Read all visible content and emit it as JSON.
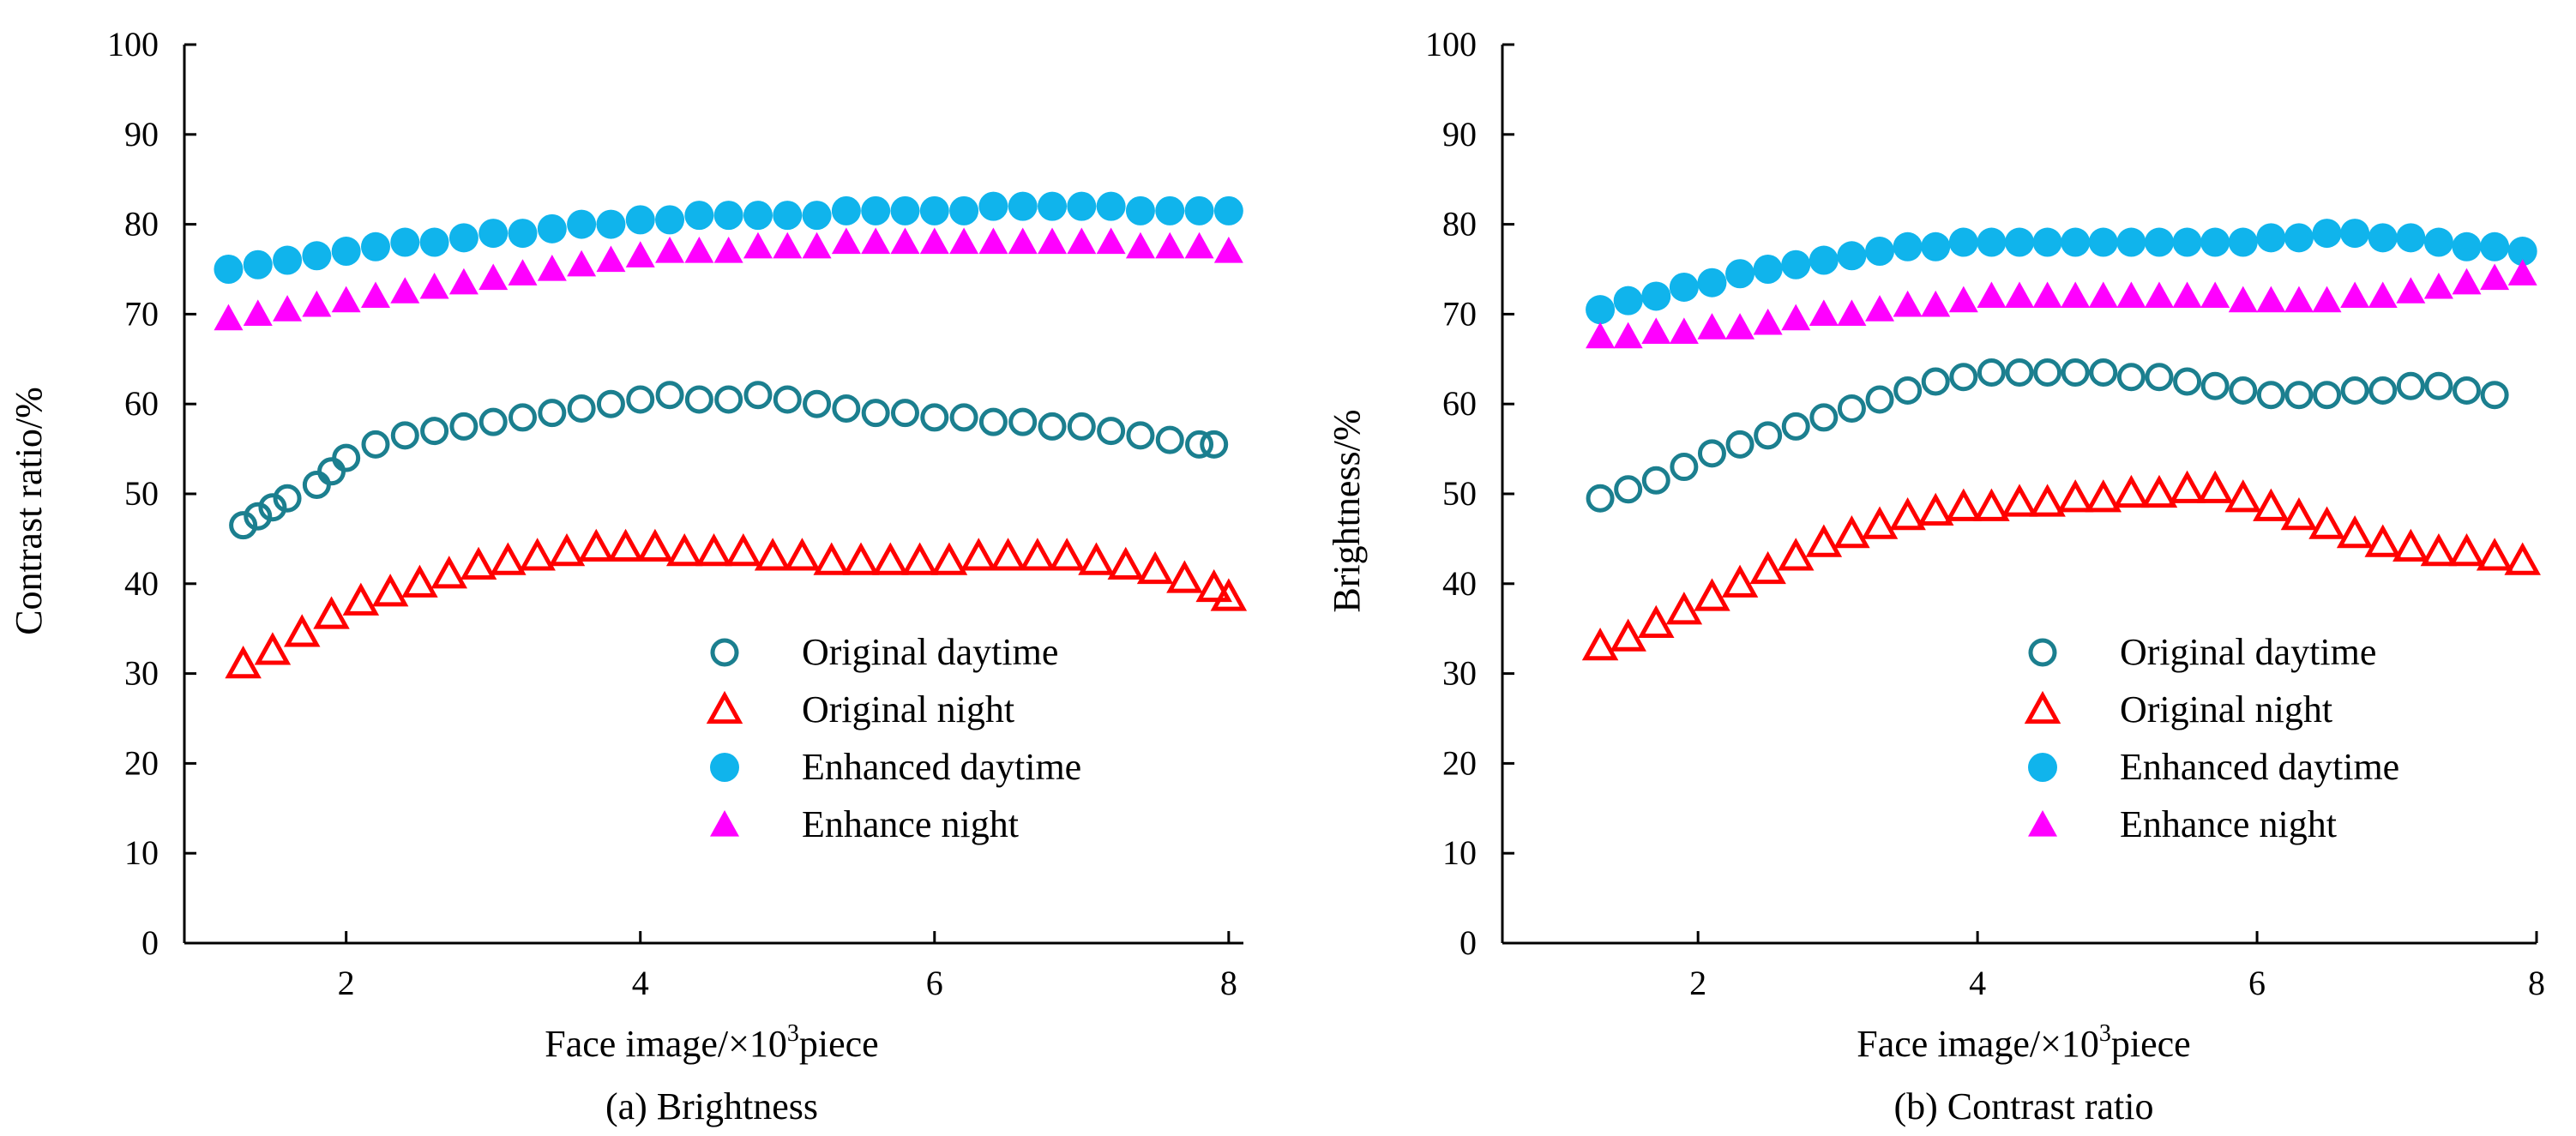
{
  "chart_data": [
    {
      "id": "a",
      "type": "scatter",
      "caption": "(a) Brightness",
      "xlabel_pre": "Face image/×10",
      "xlabel_sup": "3",
      "xlabel_post": "piece",
      "ylabel": "Contrast ratio/%",
      "xlim": [
        0.9,
        8.1
      ],
      "ylim": [
        0,
        100
      ],
      "xticks": [
        2,
        4,
        6,
        8
      ],
      "yticks": [
        0,
        10,
        20,
        30,
        40,
        50,
        60,
        70,
        80,
        90,
        100
      ],
      "legend_position": "lower-right",
      "series": [
        {
          "name": "Original daytime",
          "marker": "circle-open",
          "color": "#1b7f8f",
          "x": [
            1.3,
            1.4,
            1.5,
            1.6,
            1.8,
            1.9,
            2.0,
            2.2,
            2.4,
            2.6,
            2.8,
            3.0,
            3.2,
            3.4,
            3.6,
            3.8,
            4.0,
            4.2,
            4.4,
            4.6,
            4.8,
            5.0,
            5.2,
            5.4,
            5.6,
            5.8,
            6.0,
            6.2,
            6.4,
            6.6,
            6.8,
            7.0,
            7.2,
            7.4,
            7.6,
            7.8,
            7.9
          ],
          "y": [
            46.5,
            47.5,
            48.5,
            49.5,
            51,
            52.5,
            54,
            55.5,
            56.5,
            57,
            57.5,
            58,
            58.5,
            59,
            59.5,
            60,
            60.5,
            61,
            60.5,
            60.5,
            61,
            60.5,
            60,
            59.5,
            59,
            59,
            58.5,
            58.5,
            58,
            58,
            57.5,
            57.5,
            57,
            56.5,
            56,
            55.5,
            55.5
          ]
        },
        {
          "name": "Original night",
          "marker": "triangle-open",
          "color": "#ff0000",
          "x": [
            1.3,
            1.5,
            1.7,
            1.9,
            2.1,
            2.3,
            2.5,
            2.7,
            2.9,
            3.1,
            3.3,
            3.5,
            3.7,
            3.9,
            4.1,
            4.3,
            4.5,
            4.7,
            4.9,
            5.1,
            5.3,
            5.5,
            5.7,
            5.9,
            6.1,
            6.3,
            6.5,
            6.7,
            6.9,
            7.1,
            7.3,
            7.5,
            7.7,
            7.9,
            8.0
          ],
          "y": [
            31,
            32.5,
            34.5,
            36.5,
            38,
            39,
            40,
            41,
            42,
            42.5,
            43,
            43.5,
            44,
            44,
            44,
            43.5,
            43.5,
            43.5,
            43,
            43,
            42.5,
            42.5,
            42.5,
            42.5,
            42.5,
            43,
            43,
            43,
            43,
            42.5,
            42,
            41.5,
            40.5,
            39.5,
            38.5
          ]
        },
        {
          "name": "Enhanced daytime",
          "marker": "circle-filled",
          "color": "#10b4ec",
          "x": [
            1.2,
            1.4,
            1.6,
            1.8,
            2.0,
            2.2,
            2.4,
            2.6,
            2.8,
            3.0,
            3.2,
            3.4,
            3.6,
            3.8,
            4.0,
            4.2,
            4.4,
            4.6,
            4.8,
            5.0,
            5.2,
            5.4,
            5.6,
            5.8,
            6.0,
            6.2,
            6.4,
            6.6,
            6.8,
            7.0,
            7.2,
            7.4,
            7.6,
            7.8,
            8.0
          ],
          "y": [
            75,
            75.5,
            76,
            76.5,
            77,
            77.5,
            78,
            78,
            78.5,
            79,
            79,
            79.5,
            80,
            80,
            80.5,
            80.5,
            81,
            81,
            81,
            81,
            81,
            81.5,
            81.5,
            81.5,
            81.5,
            81.5,
            82,
            82,
            82,
            82,
            82,
            81.5,
            81.5,
            81.5,
            81.5
          ]
        },
        {
          "name": "Enhance night",
          "marker": "triangle-filled",
          "color": "#ff00ff",
          "x": [
            1.2,
            1.4,
            1.6,
            1.8,
            2.0,
            2.2,
            2.4,
            2.6,
            2.8,
            3.0,
            3.2,
            3.4,
            3.6,
            3.8,
            4.0,
            4.2,
            4.4,
            4.6,
            4.8,
            5.0,
            5.2,
            5.4,
            5.6,
            5.8,
            6.0,
            6.2,
            6.4,
            6.6,
            6.8,
            7.0,
            7.2,
            7.4,
            7.6,
            7.8,
            8.0
          ],
          "y": [
            69.5,
            70,
            70.5,
            71,
            71.5,
            72,
            72.5,
            73,
            73.5,
            74,
            74.5,
            75,
            75.5,
            76,
            76.5,
            77,
            77,
            77,
            77.5,
            77.5,
            77.5,
            78,
            78,
            78,
            78,
            78,
            78,
            78,
            78,
            78,
            78,
            77.5,
            77.5,
            77.5,
            77
          ]
        }
      ]
    },
    {
      "id": "b",
      "type": "scatter",
      "caption": "(b) Contrast ratio",
      "xlabel_pre": "Face image/×10",
      "xlabel_sup": "3",
      "xlabel_post": "piece",
      "ylabel": "Brightness/%",
      "xlim": [
        0.6,
        8.0
      ],
      "ylim": [
        0,
        100
      ],
      "xticks": [
        2,
        4,
        6,
        8
      ],
      "yticks": [
        0,
        10,
        20,
        30,
        40,
        50,
        60,
        70,
        80,
        90,
        100
      ],
      "legend_position": "lower-right",
      "series": [
        {
          "name": "Original daytime",
          "marker": "circle-open",
          "color": "#1b7f8f",
          "x": [
            1.3,
            1.5,
            1.7,
            1.9,
            2.1,
            2.3,
            2.5,
            2.7,
            2.9,
            3.1,
            3.3,
            3.5,
            3.7,
            3.9,
            4.1,
            4.3,
            4.5,
            4.7,
            4.9,
            5.1,
            5.3,
            5.5,
            5.7,
            5.9,
            6.1,
            6.3,
            6.5,
            6.7,
            6.9,
            7.1,
            7.3,
            7.5,
            7.7
          ],
          "y": [
            49.5,
            50.5,
            51.5,
            53,
            54.5,
            55.5,
            56.5,
            57.5,
            58.5,
            59.5,
            60.5,
            61.5,
            62.5,
            63,
            63.5,
            63.5,
            63.5,
            63.5,
            63.5,
            63,
            63,
            62.5,
            62,
            61.5,
            61,
            61,
            61,
            61.5,
            61.5,
            62,
            62,
            61.5,
            61
          ]
        },
        {
          "name": "Original night",
          "marker": "triangle-open",
          "color": "#ff0000",
          "x": [
            1.3,
            1.5,
            1.7,
            1.9,
            2.1,
            2.3,
            2.5,
            2.7,
            2.9,
            3.1,
            3.3,
            3.5,
            3.7,
            3.9,
            4.1,
            4.3,
            4.5,
            4.7,
            4.9,
            5.1,
            5.3,
            5.5,
            5.7,
            5.9,
            6.1,
            6.3,
            6.5,
            6.7,
            6.9,
            7.1,
            7.3,
            7.5,
            7.7,
            7.9
          ],
          "y": [
            33,
            34,
            35.5,
            37,
            38.5,
            40,
            41.5,
            43,
            44.5,
            45.5,
            46.5,
            47.5,
            48,
            48.5,
            48.5,
            49,
            49,
            49.5,
            49.5,
            50,
            50,
            50.5,
            50.5,
            49.5,
            48.5,
            47.5,
            46.5,
            45.5,
            44.5,
            44,
            43.5,
            43.5,
            43,
            42.5
          ]
        },
        {
          "name": "Enhanced daytime",
          "marker": "circle-filled",
          "color": "#10b4ec",
          "x": [
            1.3,
            1.5,
            1.7,
            1.9,
            2.1,
            2.3,
            2.5,
            2.7,
            2.9,
            3.1,
            3.3,
            3.5,
            3.7,
            3.9,
            4.1,
            4.3,
            4.5,
            4.7,
            4.9,
            5.1,
            5.3,
            5.5,
            5.7,
            5.9,
            6.1,
            6.3,
            6.5,
            6.7,
            6.9,
            7.1,
            7.3,
            7.5,
            7.7,
            7.9
          ],
          "y": [
            70.5,
            71.5,
            72,
            73,
            73.5,
            74.5,
            75,
            75.5,
            76,
            76.5,
            77,
            77.5,
            77.5,
            78,
            78,
            78,
            78,
            78,
            78,
            78,
            78,
            78,
            78,
            78,
            78.5,
            78.5,
            79,
            79,
            78.5,
            78.5,
            78,
            77.5,
            77.5,
            77
          ]
        },
        {
          "name": "Enhance night",
          "marker": "triangle-filled",
          "color": "#ff00ff",
          "x": [
            1.3,
            1.5,
            1.7,
            1.9,
            2.1,
            2.3,
            2.5,
            2.7,
            2.9,
            3.1,
            3.3,
            3.5,
            3.7,
            3.9,
            4.1,
            4.3,
            4.5,
            4.7,
            4.9,
            5.1,
            5.3,
            5.5,
            5.7,
            5.9,
            6.1,
            6.3,
            6.5,
            6.7,
            6.9,
            7.1,
            7.3,
            7.5,
            7.7,
            7.9
          ],
          "y": [
            67.5,
            67.5,
            68,
            68,
            68.5,
            68.5,
            69,
            69.5,
            70,
            70,
            70.5,
            71,
            71,
            71.5,
            72,
            72,
            72,
            72,
            72,
            72,
            72,
            72,
            72,
            71.5,
            71.5,
            71.5,
            71.5,
            72,
            72,
            72.5,
            73,
            73.5,
            74,
            74.5
          ]
        }
      ]
    }
  ]
}
